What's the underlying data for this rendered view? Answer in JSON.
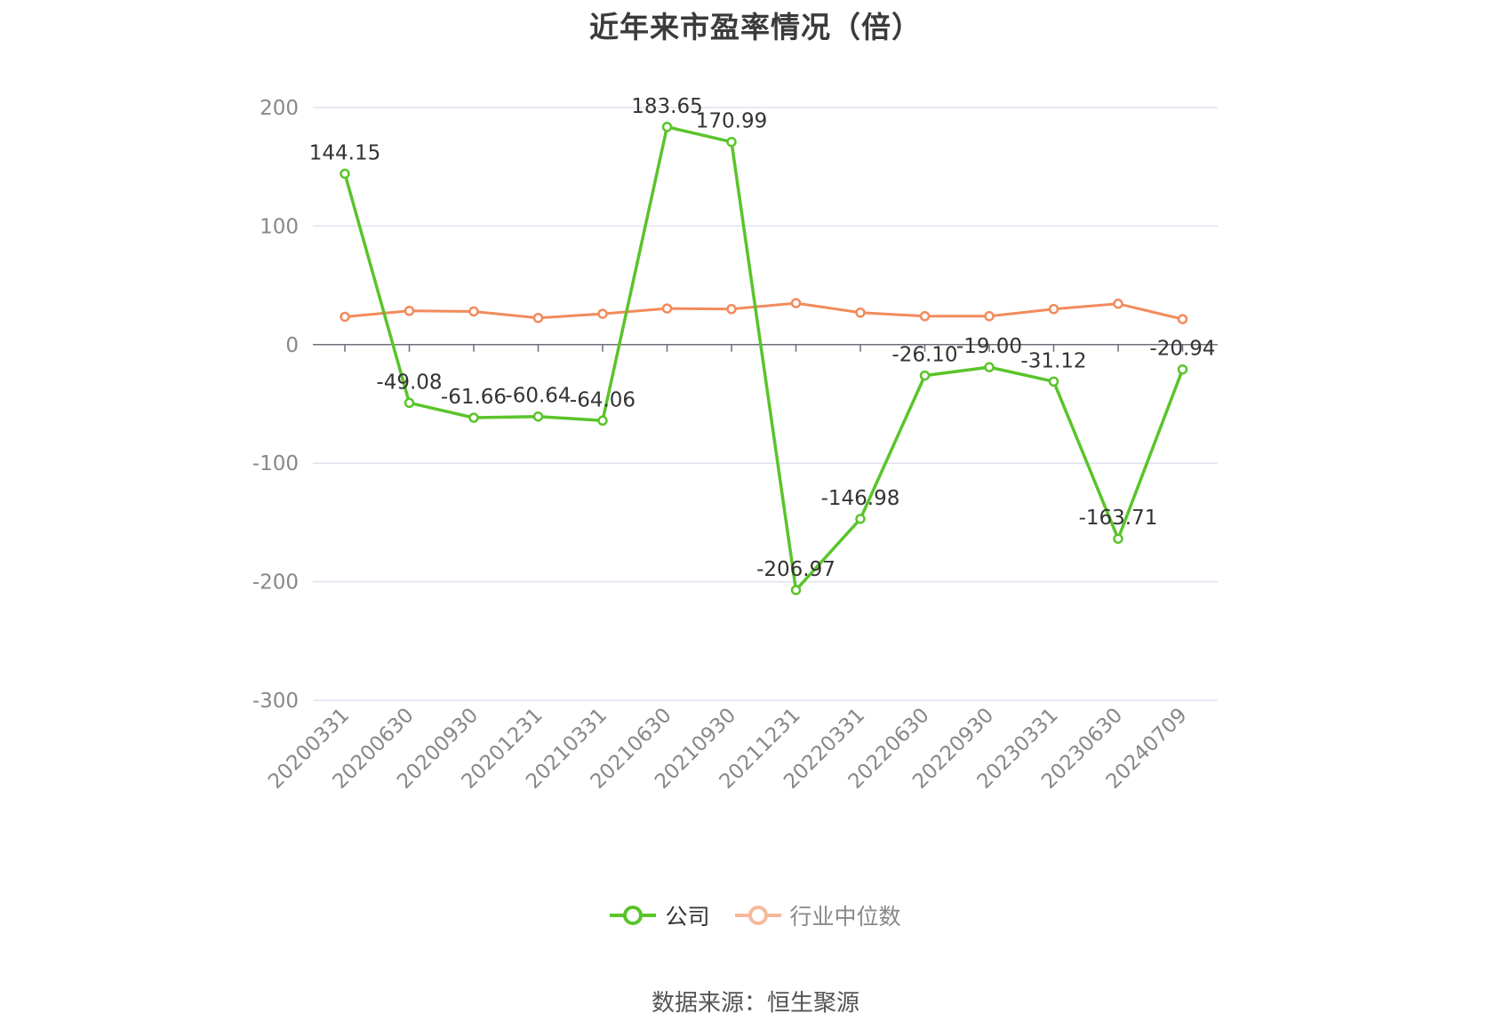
{
  "title": "近年来市盈率情况（倍）",
  "source": "数据来源：恒生聚源",
  "colors": {
    "company": "#5ac42a",
    "industry": "#f28b5c",
    "industry_legend": "#f7b89c",
    "grid": "#dfe3ee",
    "axis": "#6e7079",
    "tick_label": "#888888",
    "data_label": "#333333"
  },
  "chart_data": {
    "type": "line",
    "x": [
      "20200331",
      "20200630",
      "20200930",
      "20201231",
      "20210331",
      "20210630",
      "20210930",
      "20211231",
      "20220331",
      "20220630",
      "20220930",
      "20230331",
      "20230630",
      "20240709"
    ],
    "ylim": [
      -300,
      200
    ],
    "yticks": [
      200,
      100,
      0,
      -100,
      -200,
      -300
    ],
    "grid": true,
    "legend_position": "bottom-center",
    "series": [
      {
        "name": "公司",
        "values": [
          144.15,
          -49.08,
          -61.66,
          -60.64,
          -64.06,
          183.65,
          170.99,
          -206.97,
          -146.98,
          -26.1,
          -19.0,
          -31.12,
          -163.71,
          -20.94
        ],
        "labels": [
          "144.15",
          "-49.08",
          "-61.66",
          "-60.64",
          "-64.06",
          "183.65",
          "170.99",
          "-206.97",
          "-146.98",
          "-26.10",
          "-19.00",
          "-31.12",
          "-163.71",
          "-20.94"
        ]
      },
      {
        "name": "行业中位数",
        "values": [
          23.5,
          28.5,
          28.0,
          22.5,
          26.0,
          30.5,
          30.0,
          35.0,
          27.0,
          24.0,
          24.0,
          30.0,
          34.5,
          21.5
        ]
      }
    ]
  }
}
